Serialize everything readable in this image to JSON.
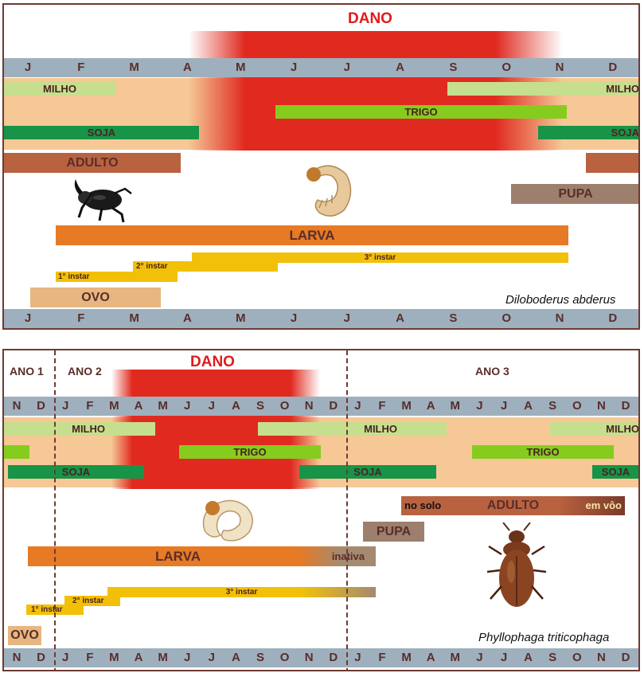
{
  "panel1": {
    "dano": "DANO",
    "months": [
      "J",
      "F",
      "M",
      "A",
      "M",
      "J",
      "J",
      "A",
      "S",
      "O",
      "N",
      "D"
    ],
    "crops": {
      "milho": "MILHO",
      "trigo": "TRIGO",
      "soja": "SOJA"
    },
    "stages": {
      "adulto": "ADULTO",
      "pupa": "PUPA",
      "larva": "LARVA",
      "ovo": "OVO"
    },
    "instars": {
      "i1": "1° instar",
      "i2": "2° instar",
      "i3": "3° instar"
    },
    "species": "Diloboderus abderus"
  },
  "panel2": {
    "dano": "DANO",
    "years": {
      "y1": "ANO 1",
      "y2": "ANO 2",
      "y3": "ANO 3"
    },
    "months": [
      "N",
      "D",
      "J",
      "F",
      "M",
      "A",
      "M",
      "J",
      "J",
      "A",
      "S",
      "O",
      "N",
      "D",
      "J",
      "F",
      "M",
      "A",
      "M",
      "J",
      "J",
      "A",
      "S",
      "O",
      "N",
      "D"
    ],
    "crops": {
      "milho": "MILHO",
      "trigo": "TRIGO",
      "soja": "SOJA"
    },
    "stages": {
      "adulto": "ADULTO",
      "adulto_solo": "no solo",
      "adulto_voo": "em vôo",
      "pupa": "PUPA",
      "larva": "LARVA",
      "larva_inativa": "inativa",
      "ovo": "OVO"
    },
    "instars": {
      "i1": "1° instar",
      "i2": "2° instar",
      "i3": "3° instar"
    },
    "species": "Phyllophaga triticophaga"
  },
  "colors": {
    "dano": "#e02a20",
    "band": "#f5c896",
    "axis": "#9eb0bd",
    "larva": "#e67a25",
    "adulto": "#b9623f",
    "pupa": "#9d7f6d",
    "instar": "#f3c009"
  },
  "icons": {
    "beetle_black": "rhinoceros-beetle-icon",
    "grub": "white-grub-icon",
    "beetle_brown": "june-beetle-icon"
  }
}
